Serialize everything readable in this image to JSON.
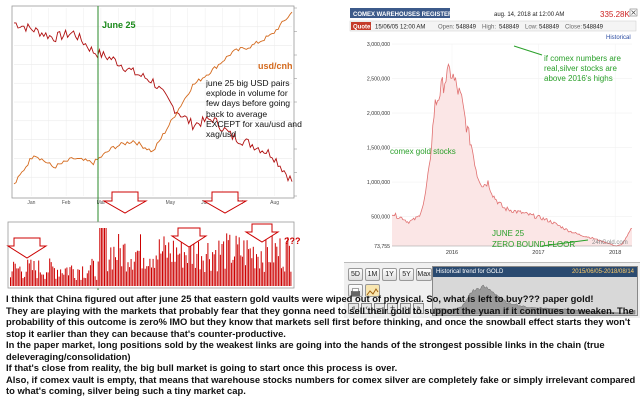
{
  "chart_data": [
    {
      "type": "line",
      "id": "usd-cnh-vs-gold",
      "series": [
        {
          "name": "usd/cnh",
          "color": "#d46a1e",
          "values": [
            6.3,
            6.44,
            6.38,
            6.42,
            6.4,
            6.47,
            6.5,
            6.45,
            6.6,
            6.75,
            6.82,
            6.9,
            6.93,
            6.98,
            7.08
          ]
        },
        {
          "name": "xau/usd",
          "color": "#b01010",
          "values": [
            1355,
            1348,
            1340,
            1345,
            1326,
            1318,
            1305,
            1296,
            1270,
            1252,
            1258,
            1240,
            1232,
            1222,
            1195
          ]
        }
      ],
      "annotations": [
        "June 25",
        "usd/cnh",
        "june 25 big USD pairs explode in volume for few days before going back to average EXCEPT for xau/usd and xag/usd"
      ],
      "xticks": [
        "Jan",
        "Feb",
        "Mar",
        "Apr",
        "May",
        "Jun",
        "Jul",
        "Aug"
      ]
    },
    {
      "type": "bar",
      "id": "volume",
      "color": "#cc0000",
      "annotations": [
        "???"
      ]
    },
    {
      "type": "area",
      "id": "comex-stocks",
      "title": "COMEX WAREHOUSES REGISTERED G",
      "header": {
        "date": "aug. 14, 2018 at 12:00 AM",
        "price": "335.28K",
        "quote_label": "Quote:",
        "quote_time": "15/06/05 12:00 AM",
        "open": "548849",
        "high": "548849",
        "low": "548849",
        "close": "548849",
        "open_label": "Open:",
        "high_label": "High:",
        "low_label": "Low:",
        "close_label": "Close:",
        "mode": "Historical"
      },
      "x_labels": [
        "2016",
        "2017",
        "2018"
      ],
      "y_labels": [
        "3,000,000",
        "2,500,000",
        "2,000,000",
        "1,500,000",
        "1,000,000",
        "500,000",
        "73,755"
      ],
      "ylim": [
        73755,
        3000000
      ],
      "values": [
        550000,
        500000,
        480000,
        420000,
        450000,
        500000,
        700000,
        1200000,
        2100000,
        2300000,
        2500000,
        2600000,
        2400000,
        2200000,
        1800000,
        1500000,
        1100000,
        950000,
        1000000,
        800000,
        700000,
        620000,
        600000,
        580000,
        560000,
        540000,
        520000,
        500000,
        480000,
        450000,
        420000,
        380000,
        340000,
        300000,
        270000,
        240000,
        220000,
        200000,
        180000,
        150000,
        130000,
        100000,
        73755,
        90000,
        200000,
        340000
      ],
      "annotations": [
        "comex gold stocks",
        "if comex numbers are real,silver stocks are above 2016's highs",
        "JUNE 25",
        "ZERO BOUND FLOOR"
      ],
      "watermark": "24hGold.com"
    }
  ],
  "toolbar": {
    "periods": [
      "5D",
      "1M",
      "1Y",
      "5Y",
      "Max"
    ],
    "hist_title": "Historical trend for GOLD",
    "hist_range": "2015/06/05-2018/08/14",
    "nav": [
      "«",
      "‹",
      "—",
      "+",
      "›",
      "»"
    ]
  },
  "commentary": [
    "I think that China figured out after june 25 that eastern gold vaults were wiped out of physical. So, what is left to buy??? paper gold!",
    "They are playing with the markets that probably fear that they gonna need to sell their gold to support the yuan if it continues to weaken. The probability of this outcome is zero% IMO but they know that markets sell first before thinking, and once the snowball effect starts they won't stop it earlier than they can because that's counter-productive.",
    "In the paper market, long positions sold by the weakest links are going into the hands of the strongest possible links in the chain (true deleveraging/consolidation)",
    "If that's close from reality, the big bull market is going to start once this process is over.",
    "Also, if comex vault is empty, that means that warehouse stocks numbers for comex silver are completely fake or simply irrelevant compared to what's coming, silver being such a tiny market cap."
  ]
}
